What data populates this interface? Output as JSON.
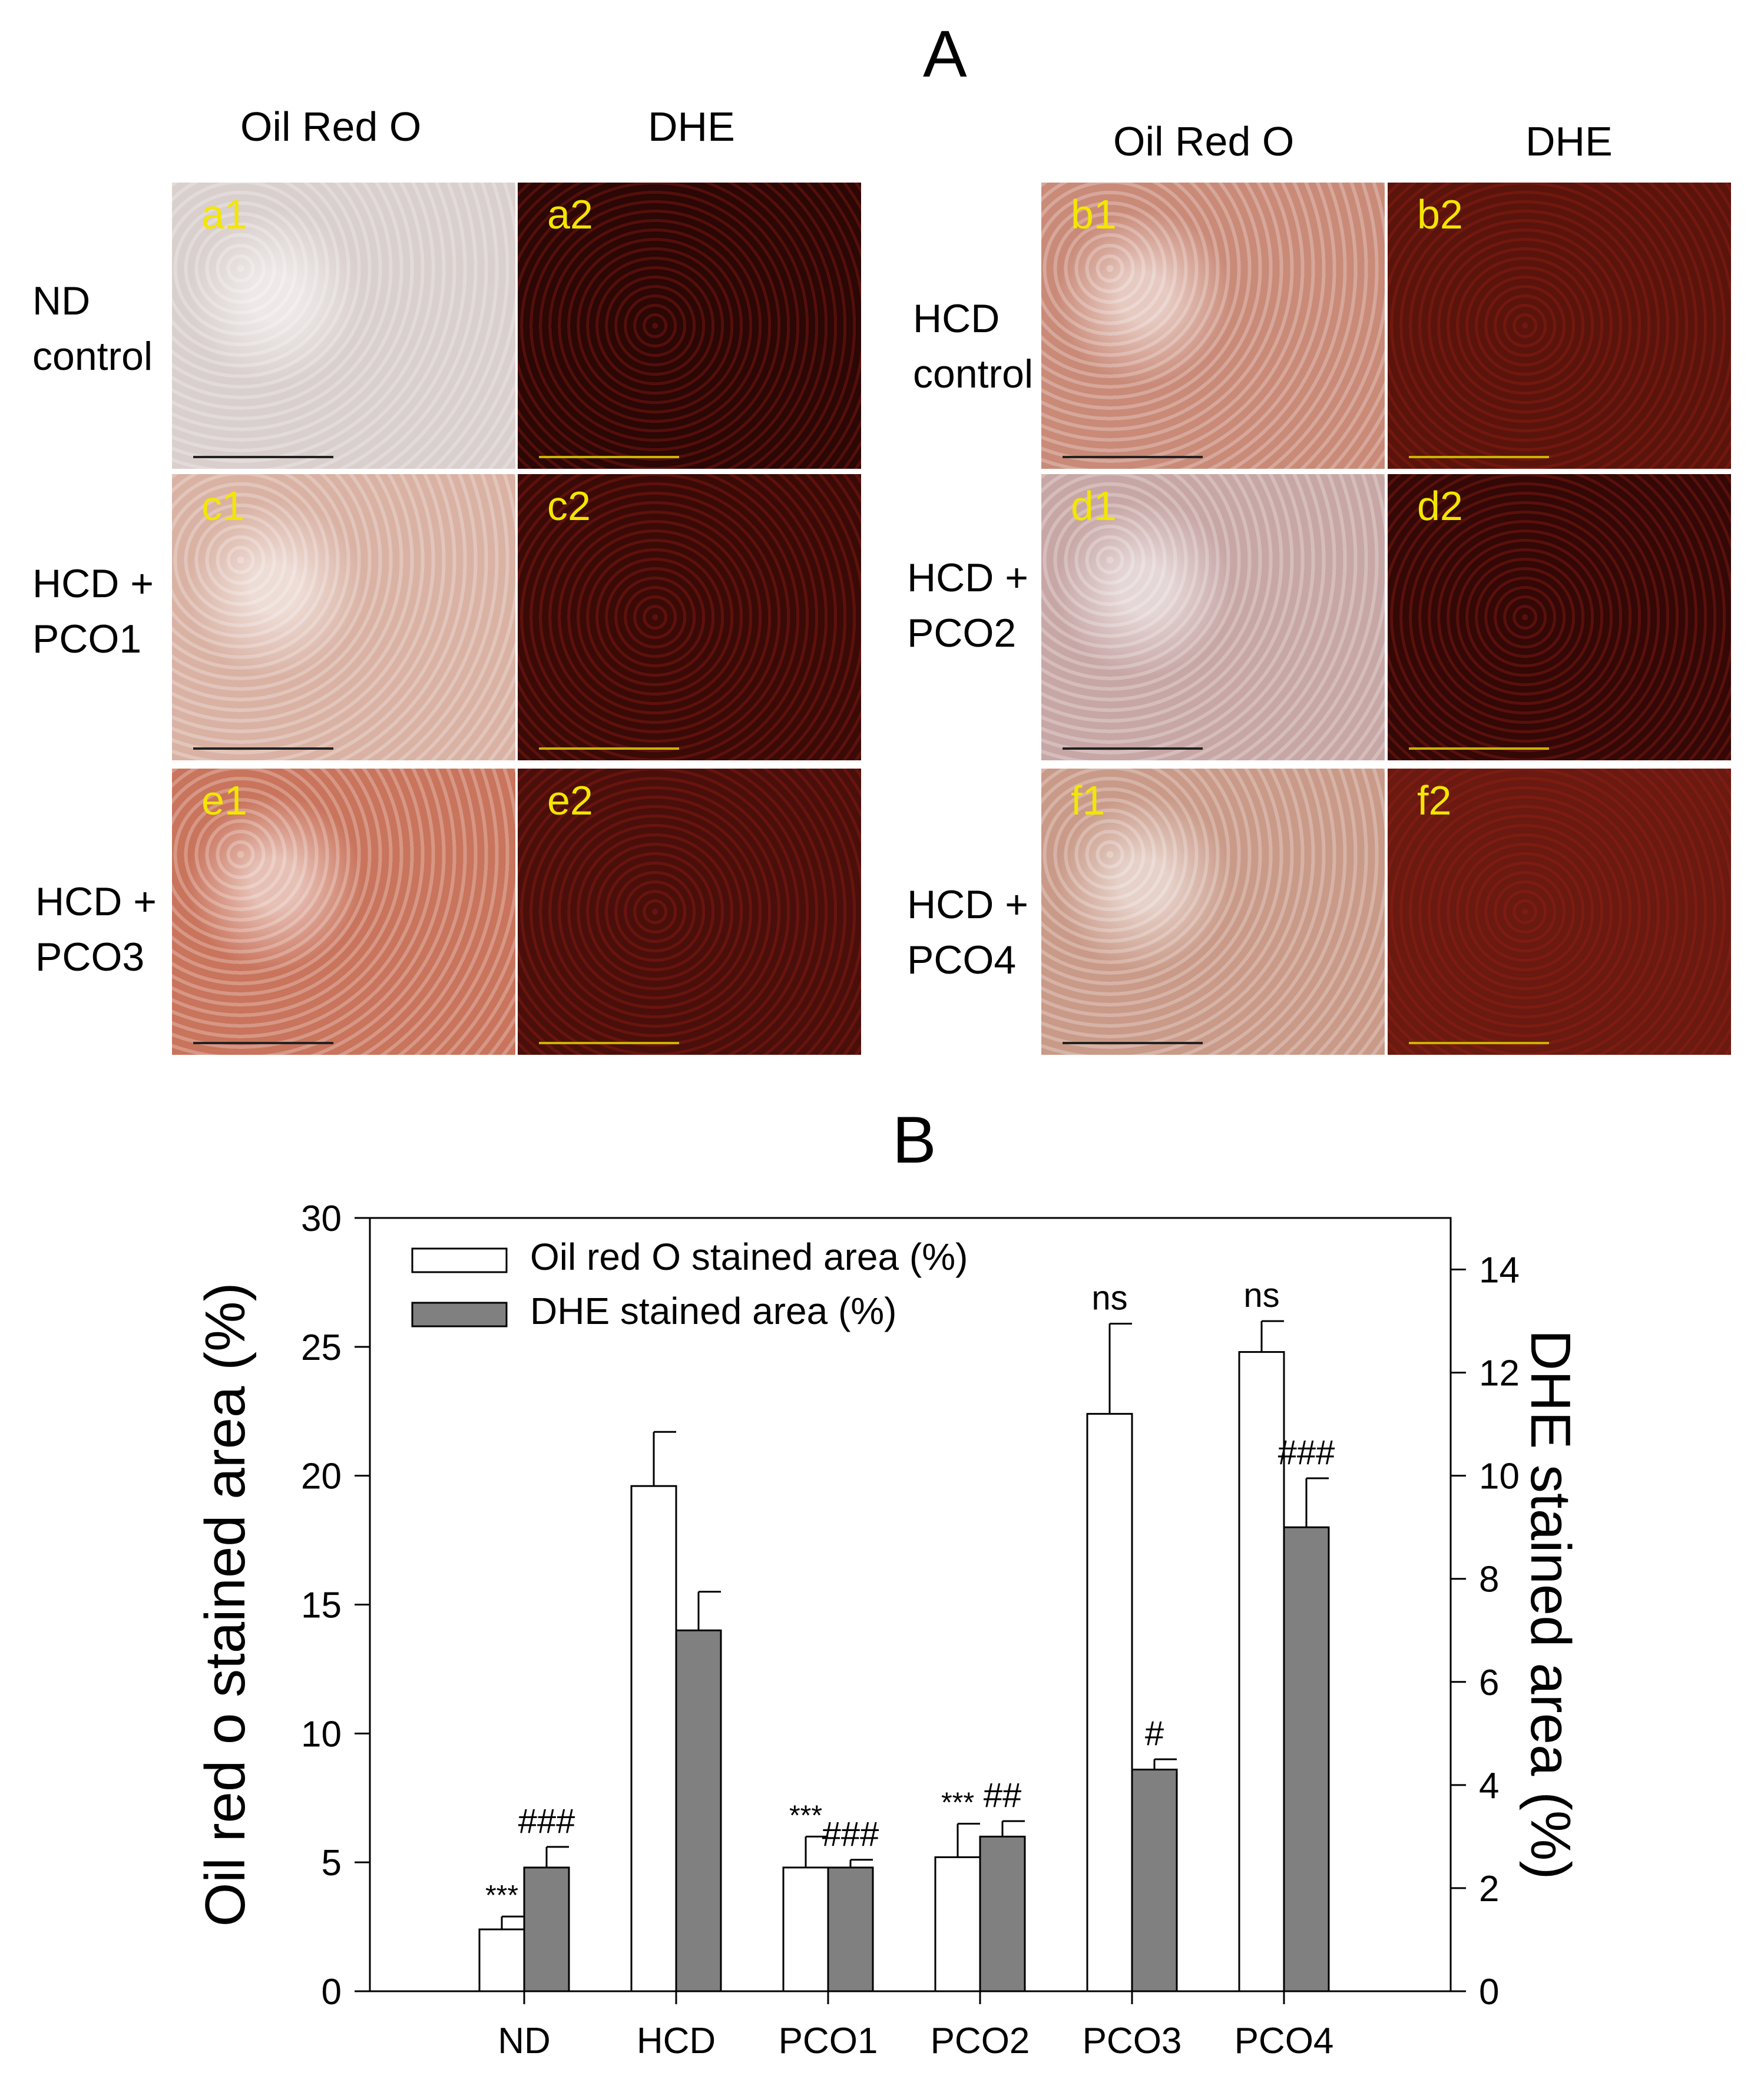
{
  "panel_a": {
    "letter": "A",
    "left_group": {
      "col1": "Oil Red O",
      "col2": "DHE"
    },
    "right_group": {
      "col1": "Oil Red O",
      "col2": "DHE"
    },
    "rows_left": [
      {
        "label_line1": "ND",
        "label_line2": "control",
        "img1": "a1",
        "img2": "a2",
        "oro_color": "#d9cfcd",
        "dhe_color": "#2b0705"
      },
      {
        "label_line1": "HCD +",
        "label_line2": "PCO1",
        "img1": "c1",
        "img2": "c2",
        "oro_color": "#d9b2a4",
        "dhe_color": "#3a0a07"
      },
      {
        "label_line1": "HCD +",
        "label_line2": "PCO3",
        "img1": "e1",
        "img2": "e2",
        "oro_color": "#c9745c",
        "dhe_color": "#4a0f0a"
      }
    ],
    "rows_right": [
      {
        "label_line1": "HCD",
        "label_line2": "control",
        "img1": "b1",
        "img2": "b2",
        "oro_color": "#c98a78",
        "dhe_color": "#5a140c"
      },
      {
        "label_line1": "HCD +",
        "label_line2": "PCO2",
        "img1": "d1",
        "img2": "d2",
        "oro_color": "#c7a7a6",
        "dhe_color": "#330806"
      },
      {
        "label_line1": "HCD +",
        "label_line2": "PCO4",
        "img1": "f1",
        "img2": "f2",
        "oro_color": "#c99a88",
        "dhe_color": "#6a1a10"
      }
    ]
  },
  "panel_b": {
    "letter": "B"
  },
  "chart_data": {
    "type": "bar",
    "categories": [
      "ND",
      "HCD",
      "PCO1",
      "PCO2",
      "PCO3",
      "PCO4"
    ],
    "ylabel": "Oil red o stained area (%)",
    "y2label": "DHE stained area (%)",
    "ylim": [
      0,
      30
    ],
    "y2lim": [
      0,
      15
    ],
    "yticks": [
      "0",
      "5",
      "10",
      "15",
      "20",
      "25",
      "30"
    ],
    "y2ticks": [
      "0",
      "2",
      "4",
      "6",
      "8",
      "10",
      "12",
      "14"
    ],
    "legend_position": "top-left",
    "series": [
      {
        "name": "Oil red O stained area (%)",
        "axis": "left",
        "color": "#ffffff",
        "values": [
          2.4,
          19.6,
          4.8,
          5.2,
          22.4,
          24.8
        ],
        "errors": [
          0.5,
          2.1,
          1.2,
          1.3,
          3.5,
          1.2
        ],
        "annotations": [
          "***",
          "",
          "***",
          "***",
          "ns",
          "ns"
        ]
      },
      {
        "name": "DHE stained area (%)",
        "axis": "right",
        "color": "#808080",
        "values": [
          2.4,
          7.0,
          2.4,
          3.0,
          4.3,
          9.0
        ],
        "errors": [
          0.4,
          0.75,
          0.15,
          0.3,
          0.2,
          0.95
        ],
        "annotations": [
          "###",
          "",
          "###",
          "##",
          "#",
          "###"
        ]
      }
    ]
  }
}
